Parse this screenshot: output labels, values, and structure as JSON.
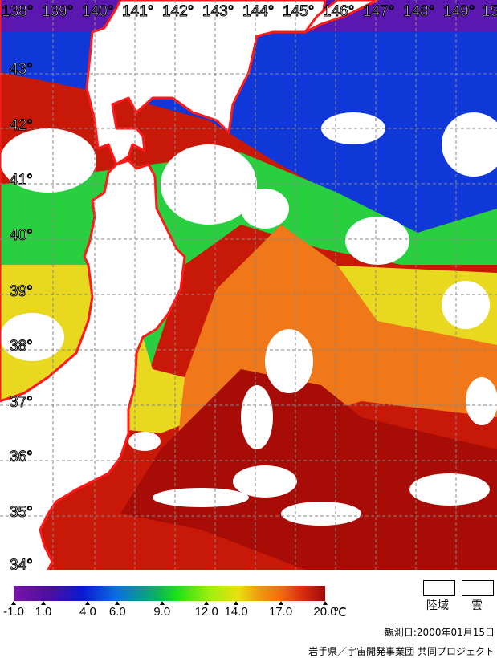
{
  "map": {
    "longitude_labels": [
      "138°",
      "139°",
      "140°",
      "141°",
      "142°",
      "143°",
      "144°",
      "145°",
      "146°",
      "147°",
      "148°",
      "149°",
      "15"
    ],
    "latitude_labels": [
      "43°",
      "42°",
      "41°",
      "40°",
      "39°",
      "38°",
      "37°",
      "36°",
      "35°",
      "34°"
    ],
    "coastline_color": "#ff1a1a",
    "land_color": "#ffffff",
    "cloud_color": "#ffffff"
  },
  "legend": {
    "ticks": [
      "-1.0",
      "1.0",
      "4.0",
      "6.0",
      "9.0",
      "12.0",
      "14.0",
      "17.0",
      "20.0"
    ],
    "tick_values": [
      -1.0,
      1.0,
      4.0,
      6.0,
      9.0,
      12.0,
      14.0,
      17.0,
      20.0
    ],
    "range": [
      -1.0,
      20.0
    ],
    "unit": "℃",
    "land_label": "陸域",
    "cloud_label": "雲"
  },
  "observation_date": "観測日:2000年01月15日",
  "credit": "岩手県／宇宙開発事業団 共同プロジェクト"
}
